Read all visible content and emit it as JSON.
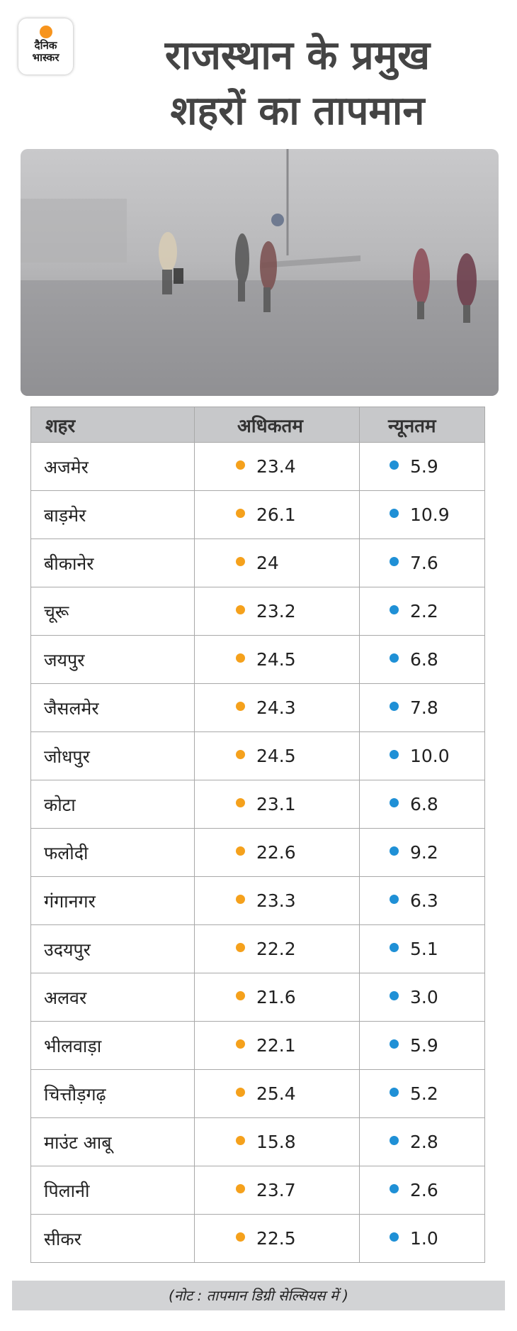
{
  "logo": {
    "line1": "दैनिक",
    "line2": "भास्कर",
    "dot_color": "#f7941d"
  },
  "title": {
    "line1": "राजस्थान के प्रमुख",
    "line2": "शहरों का तापमान"
  },
  "table": {
    "headers": [
      "शहर",
      "अधिकतम",
      "न्यूनतम"
    ],
    "max_color": "#f5a11c",
    "min_color": "#1f90d6",
    "rows": [
      {
        "city": "अजमेर",
        "max": "23.4",
        "min": "5.9"
      },
      {
        "city": "बाड़मेर",
        "max": "26.1",
        "min": "10.9"
      },
      {
        "city": "बीकानेर",
        "max": "24",
        "min": "7.6"
      },
      {
        "city": "चूरू",
        "max": "23.2",
        "min": "2.2"
      },
      {
        "city": "जयपुर",
        "max": "24.5",
        "min": "6.8"
      },
      {
        "city": "जैसलमेर",
        "max": "24.3",
        "min": "7.8"
      },
      {
        "city": "जोधपुर",
        "max": "24.5",
        "min": "10.0"
      },
      {
        "city": "कोटा",
        "max": "23.1",
        "min": "6.8"
      },
      {
        "city": "फलोदी",
        "max": "22.6",
        "min": "9.2"
      },
      {
        "city": "गंगानगर",
        "max": "23.3",
        "min": "6.3"
      },
      {
        "city": "उदयपुर",
        "max": "22.2",
        "min": "5.1"
      },
      {
        "city": "अलवर",
        "max": "21.6",
        "min": "3.0"
      },
      {
        "city": "भीलवाड़ा",
        "max": "22.1",
        "min": "5.9"
      },
      {
        "city": "चित्तौड़गढ़",
        "max": "25.4",
        "min": "5.2"
      },
      {
        "city": "माउंट आबू",
        "max": "15.8",
        "min": "2.8"
      },
      {
        "city": "पिलानी",
        "max": "23.7",
        "min": "2.6"
      },
      {
        "city": "सीकर",
        "max": "22.5",
        "min": "1.0"
      }
    ]
  },
  "note": "(नोट : तापमान डिग्री सेल्सियस में )"
}
